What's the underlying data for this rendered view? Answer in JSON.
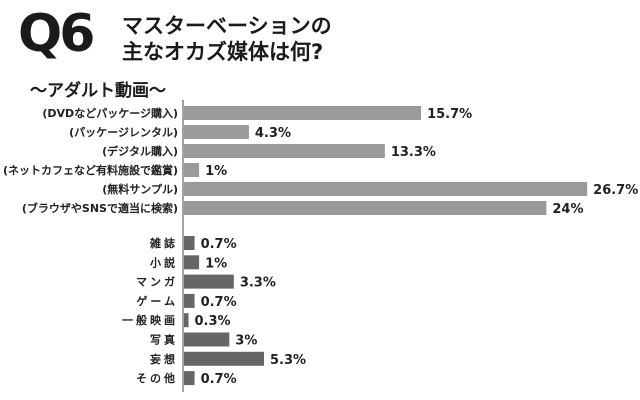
{
  "header": {
    "q_number": "Q6",
    "title_line1": "マスターベーションの",
    "title_line2": "主なオカズ媒体は何?"
  },
  "chart_data": {
    "type": "bar",
    "orientation": "horizontal",
    "unit": "%",
    "groups": [
      {
        "title": "〜アダルト動画〜",
        "color": "#9a9a9a",
        "categories": [
          "(DVDなどパッケージ購入)",
          "(パッケージレンタル)",
          "(デジタル購入)",
          "(ネットカフェなど有料施設で鑑賞)",
          "(無料サンプル)",
          "(ブラウザやSNSで適当に検索)"
        ],
        "values": [
          15.7,
          4.3,
          13.3,
          1,
          26.7,
          24
        ],
        "labels": [
          "15.7%",
          "4.3%",
          "13.3%",
          "1%",
          "26.7%",
          "24%"
        ]
      },
      {
        "title": "",
        "color": "#666666",
        "categories": [
          "雑誌",
          "小説",
          "マンガ",
          "ゲーム",
          "一般映画",
          "写真",
          "妄想",
          "その他"
        ],
        "values": [
          0.7,
          1,
          3.3,
          0.7,
          0.3,
          3,
          5.3,
          0.7
        ],
        "labels": [
          "0.7%",
          "1%",
          "3.3%",
          "0.7%",
          "0.3%",
          "3%",
          "5.3%",
          "0.7%"
        ]
      }
    ],
    "grid": false,
    "legend": "none"
  }
}
